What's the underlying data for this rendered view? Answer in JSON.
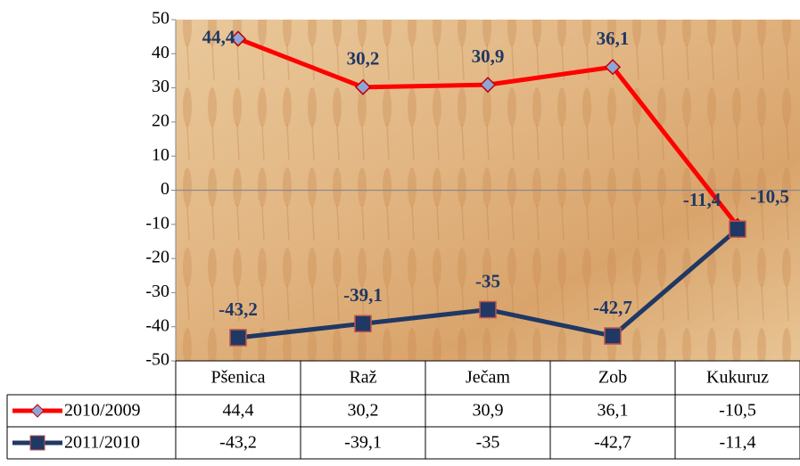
{
  "chart_data": {
    "type": "line",
    "categories": [
      "Pšenica",
      "Raž",
      "Ječam",
      "Zob",
      "Kukuruz"
    ],
    "series": [
      {
        "name": "2010/2009",
        "color": "#ff0000",
        "values": [
          44.4,
          30.2,
          30.9,
          36.1,
          -10.5
        ],
        "value_labels": [
          "44,4",
          "30,2",
          "30,9",
          "36,1",
          "-10,5"
        ]
      },
      {
        "name": "2011/2010",
        "color": "#1f3864",
        "values": [
          -43.2,
          -39.1,
          -35,
          -42.7,
          -11.4
        ],
        "value_labels": [
          "-43,2",
          "-39,1",
          "-35",
          "-42,7",
          "-11,4"
        ]
      }
    ],
    "ylim": [
      -50,
      50
    ],
    "yticks": [
      -50,
      -40,
      -30,
      -20,
      -10,
      0,
      10,
      20,
      30,
      40,
      50
    ]
  }
}
